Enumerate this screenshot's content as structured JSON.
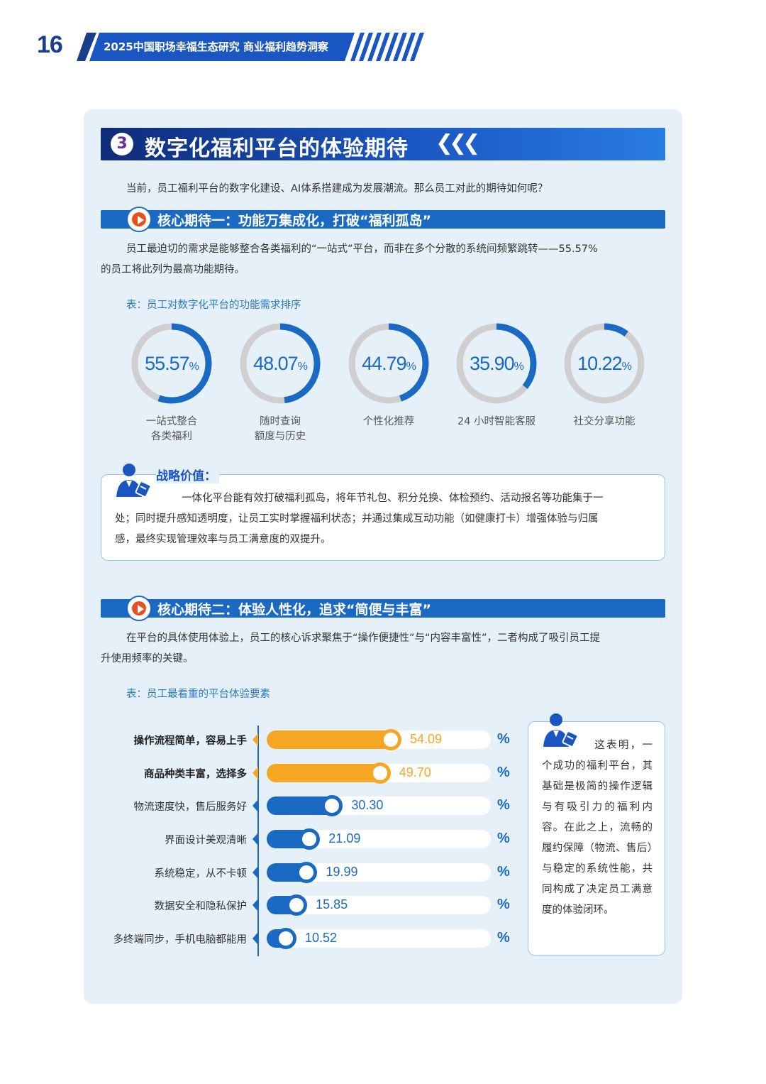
{
  "header": {
    "page_number": "16",
    "title": "2025中国职场幸福生态研究 商业福利趋势洞察"
  },
  "section": {
    "number": "3",
    "title": "数字化福利平台的体验期待",
    "intro": "当前，员工福利平台的数字化建设、AI体系搭建成为发展潮流。那么员工对此的期待如何呢？"
  },
  "expectation1": {
    "title": "核心期待一：功能万集成化，打破“福利孤岛”",
    "para_line1": "员工最迫切的需求是能够整合各类福利的“一站式”平台，而非在多个分散的系统间频繁跳转——55.57%",
    "para_line2": "的员工将此列为最高功能期待。",
    "table_caption": "表：员工对数字化平台的功能需求排序",
    "donuts": [
      {
        "value": "55.57",
        "unit": "%",
        "label_line1": "一站式整合",
        "label_line2": "各类福利"
      },
      {
        "value": "48.07",
        "unit": "%",
        "label_line1": "随时查询",
        "label_line2": "额度与历史"
      },
      {
        "value": "44.79",
        "unit": "%",
        "label_line1": "个性化推荐",
        "label_line2": ""
      },
      {
        "value": "35.90",
        "unit": "%",
        "label_line1": "24 小时智能客服",
        "label_line2": ""
      },
      {
        "value": "10.22",
        "unit": "%",
        "label_line1": "社交分享功能",
        "label_line2": ""
      }
    ],
    "strategy_label": "战略价值：",
    "strategy_line1": "一体化平台能有效打破福利孤岛，将年节礼包、积分兑换、体检预约、活动报名等功能集于一",
    "strategy_line2": "处；同时提升感知透明度，让员工实时掌握福利状态；并通过集成互动功能（如健康打卡）增强体验与归属",
    "strategy_line3": "感，最终实现管理效率与员工满意度的双提升。"
  },
  "expectation2": {
    "title": "核心期待二：体验人性化，追求“简便与丰富”",
    "para_line1": "在平台的具体使用体验上，员工的核心诉求聚焦于“操作便捷性”与“内容丰富性”，二者构成了吸引员工提",
    "para_line2": "升使用频率的关键。",
    "table_caption": "表：员工最看重的平台体验要素",
    "pct_symbol": "%",
    "side_note": "这表明，一个成功的福利平台，其基础是极简的操作逻辑与有吸引力的福利内容。在此之上，流畅的履约保障（物流、售后）与稳定的系统性能，共同构成了决定员工满意度的体验闭环。"
  },
  "chart_data": [
    {
      "type": "pie",
      "title": "表：员工对数字化平台的功能需求排序",
      "categories": [
        "一站式整合各类福利",
        "随时查询额度与历史",
        "个性化推荐",
        "24 小时智能客服",
        "社交分享功能"
      ],
      "values": [
        55.57,
        48.07,
        44.79,
        35.9,
        10.22
      ],
      "unit": "%"
    },
    {
      "type": "bar",
      "title": "表：员工最看重的平台体验要素",
      "categories": [
        "操作流程简单，容易上手",
        "商品种类丰富，选择多",
        "物流速度快，售后服务好",
        "界面设计美观清晰",
        "系统稳定，从不卡顿",
        "数据安全和隐私保护",
        "多终端同步，手机电脑都能用"
      ],
      "values": [
        54.09,
        49.7,
        30.3,
        21.09,
        19.99,
        15.85,
        10.52
      ],
      "value_labels": [
        "54.09",
        "49.70",
        "30.30",
        "21.09",
        "19.99",
        "15.85",
        "10.52"
      ],
      "highlight": [
        true,
        true,
        false,
        false,
        false,
        false,
        false
      ],
      "unit": "%",
      "colors": {
        "highlight": "#f5a623",
        "normal": "#1a6ac4"
      }
    }
  ],
  "colors": {
    "brand_dark": "#1a3f8a",
    "brand_blue": "#1a6ac4",
    "accent_orange": "#f5a623",
    "panel_bg": "#e6f0f9",
    "donut_track": "#cfcfcf"
  }
}
